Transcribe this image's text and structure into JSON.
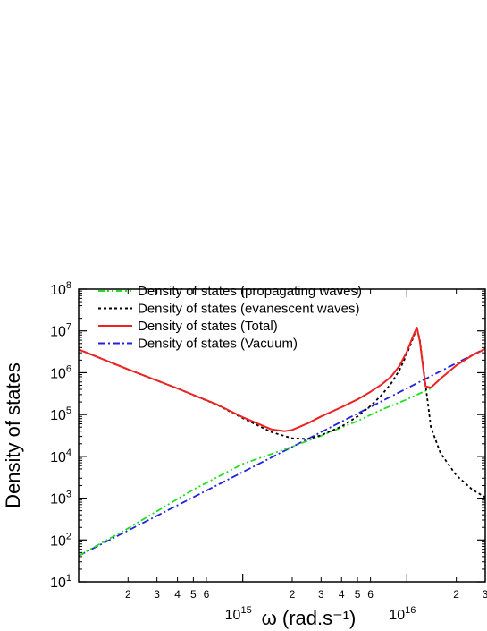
{
  "chart_data": {
    "type": "line",
    "xscale": "log",
    "yscale": "log",
    "xlim": [
      100000000000000.0,
      3e+16
    ],
    "ylim": [
      10,
      100000000.0
    ],
    "xlabel": "ω (rad.s⁻¹)",
    "ylabel": "Density of states",
    "x_major_ticks": [
      {
        "value": 1000000000000000.0,
        "base": "10",
        "exp": "15"
      },
      {
        "value": 1e+16,
        "base": "10",
        "exp": "16"
      }
    ],
    "x_minor_ticks": [
      {
        "value": 200000000000000.0,
        "label": "2"
      },
      {
        "value": 300000000000000.0,
        "label": "3"
      },
      {
        "value": 400000000000000.0,
        "label": "4"
      },
      {
        "value": 500000000000000.0,
        "label": "5"
      },
      {
        "value": 600000000000000.0,
        "label": "6"
      },
      {
        "value": 2000000000000000.0,
        "label": "2"
      },
      {
        "value": 3000000000000000.0,
        "label": "3"
      },
      {
        "value": 4000000000000000.0,
        "label": "4"
      },
      {
        "value": 5000000000000000.0,
        "label": "5"
      },
      {
        "value": 6000000000000000.0,
        "label": "6"
      },
      {
        "value": 2e+16,
        "label": "2"
      },
      {
        "value": 3e+16,
        "label": "3"
      }
    ],
    "y_ticks": [
      {
        "value": 10,
        "base": "10",
        "exp": "1"
      },
      {
        "value": 100,
        "base": "10",
        "exp": "2"
      },
      {
        "value": 1000,
        "base": "10",
        "exp": "3"
      },
      {
        "value": 10000,
        "base": "10",
        "exp": "4"
      },
      {
        "value": 100000,
        "base": "10",
        "exp": "5"
      },
      {
        "value": 1000000,
        "base": "10",
        "exp": "6"
      },
      {
        "value": 10000000,
        "base": "10",
        "exp": "7"
      },
      {
        "value": 100000000,
        "base": "10",
        "exp": "8"
      }
    ],
    "legend_position": "top-left",
    "series": [
      {
        "name": "Density of states (propagating waves)",
        "color": "#22dd22",
        "dash": "dash-dot-dot",
        "x": [
          100000000000000.0,
          200000000000000.0,
          500000000000000.0,
          1000000000000000.0,
          2000000000000000.0,
          3000000000000000.0,
          5000000000000000.0,
          7000000000000000.0,
          1e+16,
          1.2e+16,
          1.4e+16
        ],
        "y": [
          42,
          190,
          1600,
          6600,
          17000,
          31000,
          70000,
          130000,
          230000,
          320000,
          420000
        ]
      },
      {
        "name": "Density of states (evanescent waves)",
        "color": "#000000",
        "dash": "dotted",
        "x": [
          100000000000000.0,
          200000000000000.0,
          400000000000000.0,
          700000000000000.0,
          1000000000000000.0,
          1500000000000000.0,
          2000000000000000.0,
          2500000000000000.0,
          3000000000000000.0,
          4000000000000000.0,
          5000000000000000.0,
          6000000000000000.0,
          7000000000000000.0,
          8000000000000000.0,
          9000000000000000.0,
          1e+16,
          1.1e+16,
          1.15e+16,
          1.2e+16,
          1.25e+16,
          1.3e+16,
          1.4e+16,
          1.6e+16,
          2e+16,
          2.5e+16,
          3e+16
        ],
        "y": [
          3600000,
          1200000,
          420000,
          170000,
          82000,
          38000,
          27000,
          26000,
          32000,
          52000,
          90000,
          160000,
          290000,
          550000,
          1150000,
          2800000,
          7500000,
          12000000,
          6000000,
          1600000,
          500000,
          50000,
          12000,
          3500,
          1600,
          1050
        ]
      },
      {
        "name": "Density of states (Total)",
        "color": "#ee2222",
        "dash": "solid",
        "x": [
          100000000000000.0,
          200000000000000.0,
          400000000000000.0,
          700000000000000.0,
          1000000000000000.0,
          1500000000000000.0,
          1800000000000000.0,
          2000000000000000.0,
          2500000000000000.0,
          3000000000000000.0,
          4000000000000000.0,
          5000000000000000.0,
          6000000000000000.0,
          7000000000000000.0,
          8000000000000000.0,
          9000000000000000.0,
          1e+16,
          1.1e+16,
          1.15e+16,
          1.2e+16,
          1.25e+16,
          1.3e+16,
          1.4e+16,
          1.6e+16,
          2e+16,
          2.5e+16,
          3e+16
        ],
        "y": [
          3600000,
          1200000,
          420000,
          172000,
          86000,
          44000,
          40000,
          43000,
          62000,
          90000,
          150000,
          230000,
          350000,
          520000,
          800000,
          1450000,
          3200000,
          8200000,
          12000000,
          5500000,
          1500000,
          470000,
          440000,
          720000,
          1500000,
          2600000,
          3700000
        ]
      },
      {
        "name": "Density of states (Vacuum)",
        "color": "#2222dd",
        "dash": "dash-dot",
        "x": [
          100000000000000.0,
          3e+16
        ],
        "y": [
          42,
          3800000
        ]
      }
    ]
  }
}
